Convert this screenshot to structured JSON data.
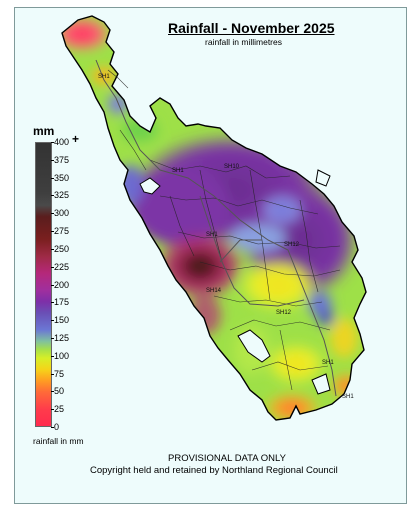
{
  "title": "Rainfall - November 2025",
  "subtitle": "rainfall in millimetres",
  "legend": {
    "unit": "mm",
    "plus": "+",
    "ticks": [
      "400",
      "375",
      "350",
      "325",
      "300",
      "275",
      "250",
      "225",
      "200",
      "175",
      "150",
      "125",
      "100",
      "75",
      "50",
      "25",
      "0"
    ],
    "caption": "rainfall in mm"
  },
  "roads": [
    "SH1",
    "SH1",
    "SH10",
    "SH1",
    "SH12",
    "SH14",
    "SH12",
    "SH1",
    "SH1"
  ],
  "footer": {
    "provisional": "PROVISIONAL DATA ONLY",
    "copyright": "Copyright held and retained by Northland Regional Council"
  },
  "colors": {
    "background": "#eefcfc",
    "very_wet": "#3a1a1a",
    "wet_magenta": "#b1287e",
    "purple": "#7d3aa6",
    "violet": "#6d6ad0",
    "green": "#9ae04a",
    "yellow": "#f5de1a",
    "orange": "#ff8f26",
    "red": "#ff3c4b"
  }
}
